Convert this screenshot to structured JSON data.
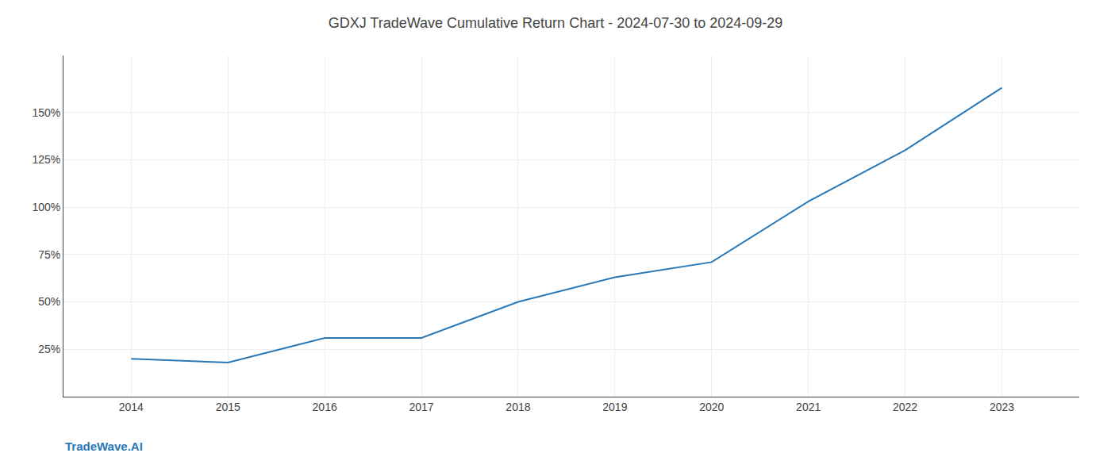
{
  "chart_data": {
    "type": "line",
    "title": "GDXJ TradeWave Cumulative Return Chart - 2024-07-30 to 2024-09-29",
    "annotations": [
      "TradeWave.AI"
    ],
    "x": [
      2014,
      2015,
      2016,
      2017,
      2018,
      2019,
      2020,
      2021,
      2022,
      2023
    ],
    "values": [
      20,
      18,
      31,
      31,
      50,
      63,
      71,
      103,
      130,
      163
    ],
    "color": "#2878b8",
    "xlim": [
      2013.3,
      2023.8
    ],
    "xticks": [
      2014,
      2015,
      2016,
      2017,
      2018,
      2019,
      2020,
      2021,
      2022,
      2023
    ],
    "ylim": [
      0,
      180
    ],
    "yticks": [
      {
        "value": 25,
        "label": "25%"
      },
      {
        "value": 50,
        "label": "50%"
      },
      {
        "value": 75,
        "label": "75%"
      },
      {
        "value": 100,
        "label": "100%"
      },
      {
        "value": 125,
        "label": "125%"
      },
      {
        "value": 150,
        "label": "150%"
      }
    ],
    "grid": true
  }
}
